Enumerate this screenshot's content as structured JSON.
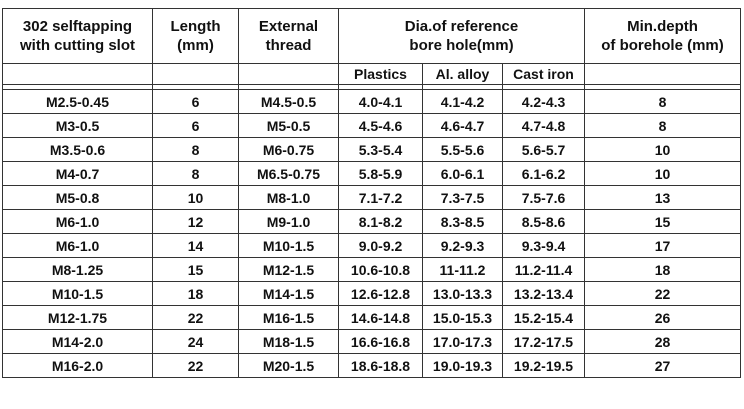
{
  "headers": {
    "col1": [
      "302 selftapping",
      "with cutting slot"
    ],
    "col2": [
      "Length",
      "(mm)"
    ],
    "col3": [
      "External",
      "thread"
    ],
    "col4": [
      "Dia.of reference",
      "bore hole(mm)"
    ],
    "col5": [
      "Min.depth",
      "of borehole (mm)"
    ]
  },
  "subheaders": [
    "Plastics",
    "Al. alloy",
    "Cast iron"
  ],
  "rows": [
    {
      "screw": "M2.5-0.45",
      "length": "6",
      "thread": "M4.5-0.5",
      "plastics": "4.0-4.1",
      "al": "4.1-4.2",
      "cast": "4.2-4.3",
      "depth": "8"
    },
    {
      "screw": "M3-0.5",
      "length": "6",
      "thread": "M5-0.5",
      "plastics": "4.5-4.6",
      "al": "4.6-4.7",
      "cast": "4.7-4.8",
      "depth": "8"
    },
    {
      "screw": "M3.5-0.6",
      "length": "8",
      "thread": "M6-0.75",
      "plastics": "5.3-5.4",
      "al": "5.5-5.6",
      "cast": "5.6-5.7",
      "depth": "10"
    },
    {
      "screw": "M4-0.7",
      "length": "8",
      "thread": "M6.5-0.75",
      "plastics": "5.8-5.9",
      "al": "6.0-6.1",
      "cast": "6.1-6.2",
      "depth": "10"
    },
    {
      "screw": "M5-0.8",
      "length": "10",
      "thread": "M8-1.0",
      "plastics": "7.1-7.2",
      "al": "7.3-7.5",
      "cast": "7.5-7.6",
      "depth": "13"
    },
    {
      "screw": "M6-1.0",
      "length": "12",
      "thread": "M9-1.0",
      "plastics": "8.1-8.2",
      "al": "8.3-8.5",
      "cast": "8.5-8.6",
      "depth": "15"
    },
    {
      "screw": "M6-1.0",
      "length": "14",
      "thread": "M10-1.5",
      "plastics": "9.0-9.2",
      "al": "9.2-9.3",
      "cast": "9.3-9.4",
      "depth": "17"
    },
    {
      "screw": "M8-1.25",
      "length": "15",
      "thread": "M12-1.5",
      "plastics": "10.6-10.8",
      "al": "11-11.2",
      "cast": "11.2-11.4",
      "depth": "18"
    },
    {
      "screw": "M10-1.5",
      "length": "18",
      "thread": "M14-1.5",
      "plastics": "12.6-12.8",
      "al": "13.0-13.3",
      "cast": "13.2-13.4",
      "depth": "22"
    },
    {
      "screw": "M12-1.75",
      "length": "22",
      "thread": "M16-1.5",
      "plastics": "14.6-14.8",
      "al": "15.0-15.3",
      "cast": "15.2-15.4",
      "depth": "26"
    },
    {
      "screw": "M14-2.0",
      "length": "24",
      "thread": "M18-1.5",
      "plastics": "16.6-16.8",
      "al": "17.0-17.3",
      "cast": "17.2-17.5",
      "depth": "28"
    },
    {
      "screw": "M16-2.0",
      "length": "22",
      "thread": "M20-1.5",
      "plastics": "18.6-18.8",
      "al": "19.0-19.3",
      "cast": "19.2-19.5",
      "depth": "27"
    }
  ]
}
